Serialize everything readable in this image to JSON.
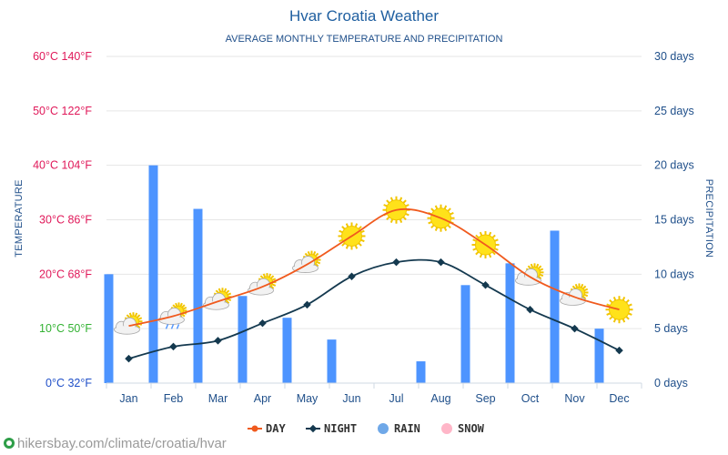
{
  "page": {
    "title": "Hvar Croatia Weather",
    "subtitle": "AVERAGE MONTHLY TEMPERATURE AND PRECIPITATION",
    "footer_url": "hikersbay.com/climate/croatia/hvar"
  },
  "chart_data": {
    "type": "line+bar",
    "title": "Hvar Croatia Weather",
    "subtitle": "AVERAGE MONTHLY TEMPERATURE AND PRECIPITATION",
    "categories": [
      "Jan",
      "Feb",
      "Mar",
      "Apr",
      "May",
      "Jun",
      "Jul",
      "Aug",
      "Sep",
      "Oct",
      "Nov",
      "Dec"
    ],
    "y_left": {
      "label": "TEMPERATURE",
      "range_c": [
        0,
        60
      ],
      "ticks": [
        {
          "value": 60,
          "label": "60°C 140°F",
          "color": "#e0195a"
        },
        {
          "value": 50,
          "label": "50°C 122°F",
          "color": "#e0195a"
        },
        {
          "value": 40,
          "label": "40°C 104°F",
          "color": "#e0195a"
        },
        {
          "value": 30,
          "label": "30°C 86°F",
          "color": "#e0195a"
        },
        {
          "value": 20,
          "label": "20°C 68°F",
          "color": "#e0195a"
        },
        {
          "value": 10,
          "label": "10°C 50°F",
          "color": "#33b233"
        },
        {
          "value": 0,
          "label": "0°C 32°F",
          "color": "#1f4fc8"
        }
      ]
    },
    "y_right": {
      "label": "PRECIPITATION",
      "range_days": [
        0,
        30
      ],
      "ticks": [
        {
          "value": 30,
          "label": "30 days"
        },
        {
          "value": 25,
          "label": "25 days"
        },
        {
          "value": 20,
          "label": "20 days"
        },
        {
          "value": 15,
          "label": "15 days"
        },
        {
          "value": 10,
          "label": "10 days"
        },
        {
          "value": 5,
          "label": "5 days"
        },
        {
          "value": 0,
          "label": "0 days"
        }
      ]
    },
    "series": [
      {
        "name": "DAY",
        "kind": "line",
        "color": "#f05a1e",
        "values": [
          10.5,
          12.3,
          15.0,
          17.7,
          21.8,
          27.0,
          31.8,
          30.3,
          25.4,
          19.5,
          15.8,
          13.5
        ]
      },
      {
        "name": "NIGHT",
        "kind": "line",
        "color": "#14394f",
        "values": [
          4.5,
          6.7,
          7.8,
          11.0,
          14.4,
          19.6,
          22.2,
          22.2,
          18.0,
          13.5,
          10.0,
          6.0
        ]
      },
      {
        "name": "RAIN",
        "kind": "bar",
        "color": "#4d94ff",
        "unit": "days",
        "values": [
          10,
          20,
          16,
          8,
          6,
          4,
          0,
          2,
          9,
          11,
          14,
          5
        ]
      },
      {
        "name": "SNOW",
        "kind": "bar",
        "color": "#ffb6c8",
        "unit": "days",
        "values": [
          0,
          0,
          0,
          0,
          0,
          0,
          0,
          0,
          0,
          0,
          0,
          0
        ]
      }
    ],
    "weather_icons": [
      "partly-sunny",
      "rain",
      "partly-sunny",
      "partly-sunny",
      "partly-sunny",
      "sunny",
      "sunny",
      "sunny",
      "sunny",
      "partly-sunny",
      "partly-sunny",
      "sunny"
    ],
    "legend": [
      {
        "label": "DAY",
        "color": "#f05a1e",
        "marker": "line-dot"
      },
      {
        "label": "NIGHT",
        "color": "#14394f",
        "marker": "line-diamond"
      },
      {
        "label": "RAIN",
        "color": "#6fa8e8",
        "marker": "circle"
      },
      {
        "label": "SNOW",
        "color": "#ffb6c8",
        "marker": "circle"
      }
    ]
  }
}
